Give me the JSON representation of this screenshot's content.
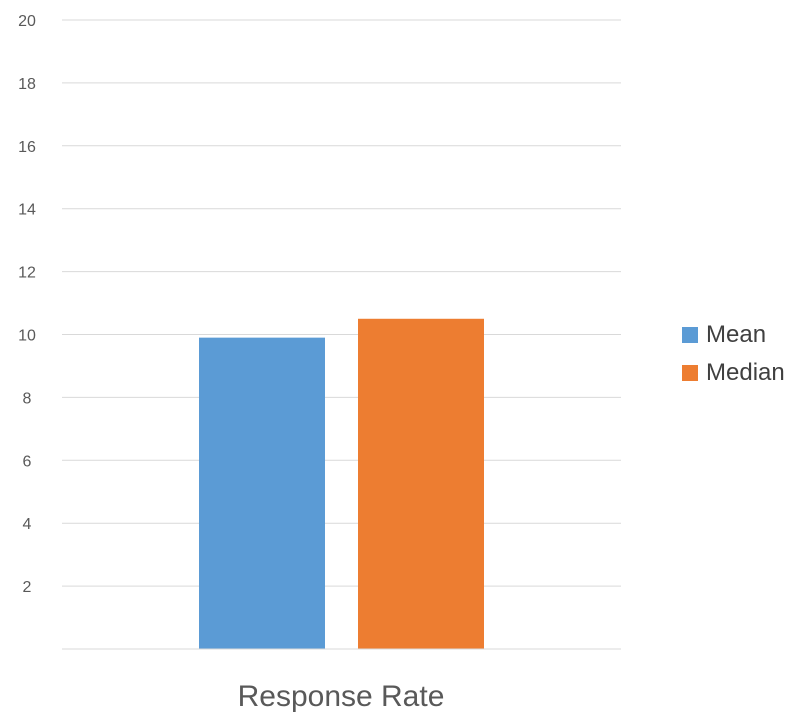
{
  "chart_data": {
    "type": "bar",
    "categories": [
      "Response Rate"
    ],
    "series": [
      {
        "name": "Mean",
        "values": [
          9.9
        ],
        "color": "#5B9BD5"
      },
      {
        "name": "Median",
        "values": [
          10.5
        ],
        "color": "#ED7D31"
      }
    ],
    "ylim": [
      0,
      20
    ],
    "yticks": [
      2,
      4,
      6,
      8,
      10,
      12,
      14,
      16,
      18,
      20
    ],
    "grid": true,
    "legend_position": "right"
  }
}
